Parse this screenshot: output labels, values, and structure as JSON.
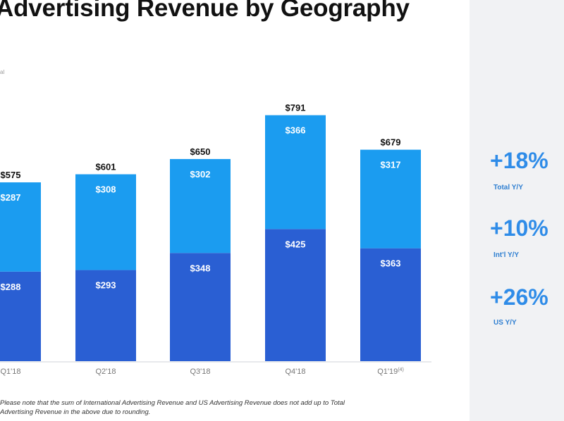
{
  "title": "Advertising Revenue by Geography",
  "legend_fragment": "al",
  "stats": [
    {
      "value": "+18%",
      "label": "Total Y/Y"
    },
    {
      "value": "+10%",
      "label": "Int'l Y/Y"
    },
    {
      "value": "+26%",
      "label": "US Y/Y"
    }
  ],
  "footnote": {
    "line1": "Please note that the sum of International Advertising Revenue and US Advertising Revenue does not add up to Total",
    "line2": "Advertising Revenue in the above due to rounding."
  },
  "colors": {
    "us": "#2a5fd3",
    "intl": "#1b9cf0",
    "accent": "#2f8ce8"
  },
  "chart_data": {
    "type": "bar",
    "stacked": true,
    "categories": [
      "Q1'18",
      "Q2'18",
      "Q3'18",
      "Q4'18",
      "Q1'19"
    ],
    "category_superscripts": [
      "",
      "",
      "",
      "",
      "(4)"
    ],
    "series": [
      {
        "values": [
          288,
          293,
          348,
          425,
          363
        ]
      },
      {
        "values": [
          287,
          308,
          302,
          366,
          317
        ]
      }
    ],
    "totals": [
      "$575",
      "$601",
      "$650",
      "$791",
      "$679"
    ],
    "series_labels": [
      [
        "$288",
        "$293",
        "$348",
        "$425",
        "$363"
      ],
      [
        "$287",
        "$308",
        "$302",
        "$366",
        "$317"
      ]
    ],
    "ylim": [
      0,
      800
    ]
  }
}
